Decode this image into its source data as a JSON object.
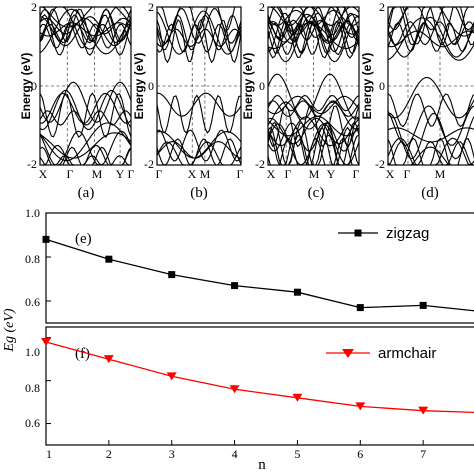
{
  "chart_data": [
    {
      "type": "band-structure",
      "panel_label": "(a)",
      "ylabel": "Energy (eV)",
      "ylim": [
        -2,
        2
      ],
      "yticks": [
        "-2",
        "0",
        "2"
      ],
      "kpoints": [
        "X",
        "Γ",
        "M",
        "Y",
        "Γ"
      ]
    },
    {
      "type": "band-structure",
      "panel_label": "(b)",
      "ylabel": "Energy (eV)",
      "ylim": [
        -2,
        2
      ],
      "yticks": [
        "-2",
        "0",
        "2"
      ],
      "kpoints": [
        "Γ",
        "X",
        "M",
        "Γ"
      ]
    },
    {
      "type": "band-structure",
      "panel_label": "(c)",
      "ylabel": "Energy (eV)",
      "ylim": [
        -2,
        2
      ],
      "yticks": [
        "-2",
        "0",
        "2"
      ],
      "kpoints": [
        "X",
        "Γ",
        "M",
        "Y",
        "Γ"
      ]
    },
    {
      "type": "band-structure",
      "panel_label": "(d)",
      "ylabel": "Energy (eV)",
      "ylim": [
        -2,
        2
      ],
      "yticks": [
        "-2",
        "0",
        "2"
      ],
      "kpoints": [
        "X",
        "Γ",
        "M"
      ]
    },
    {
      "type": "line",
      "panel_label": "(e)",
      "x": [
        1,
        2,
        3,
        4,
        5,
        6,
        7,
        8
      ],
      "series": [
        {
          "name": "zigzag",
          "values": [
            0.88,
            0.79,
            0.72,
            0.67,
            0.64,
            0.57,
            0.58,
            0.55
          ],
          "color": "#000000",
          "marker": "square"
        }
      ],
      "ylim": [
        0.5,
        1.0
      ],
      "yticks": [
        "0.6",
        "0.8",
        "1.0"
      ],
      "legend_position": "top-right"
    },
    {
      "type": "line",
      "panel_label": "(f)",
      "x": [
        1,
        2,
        3,
        4,
        5,
        6,
        7,
        8
      ],
      "series": [
        {
          "name": "armchair",
          "values": [
            0.98,
            0.9,
            0.82,
            0.76,
            0.72,
            0.68,
            0.66,
            0.65
          ],
          "color": "#ff0000",
          "marker": "triangle-down"
        }
      ],
      "ylim": [
        0.5,
        1.05
      ],
      "yticks": [
        "0.6",
        "0.8",
        "1.0"
      ],
      "xticks": [
        "1",
        "2",
        "3",
        "4",
        "5",
        "6",
        "7",
        "8"
      ],
      "xlabel": "n",
      "legend_position": "top-right"
    }
  ],
  "shared_ylabel_bottom": "Eg (eV)"
}
